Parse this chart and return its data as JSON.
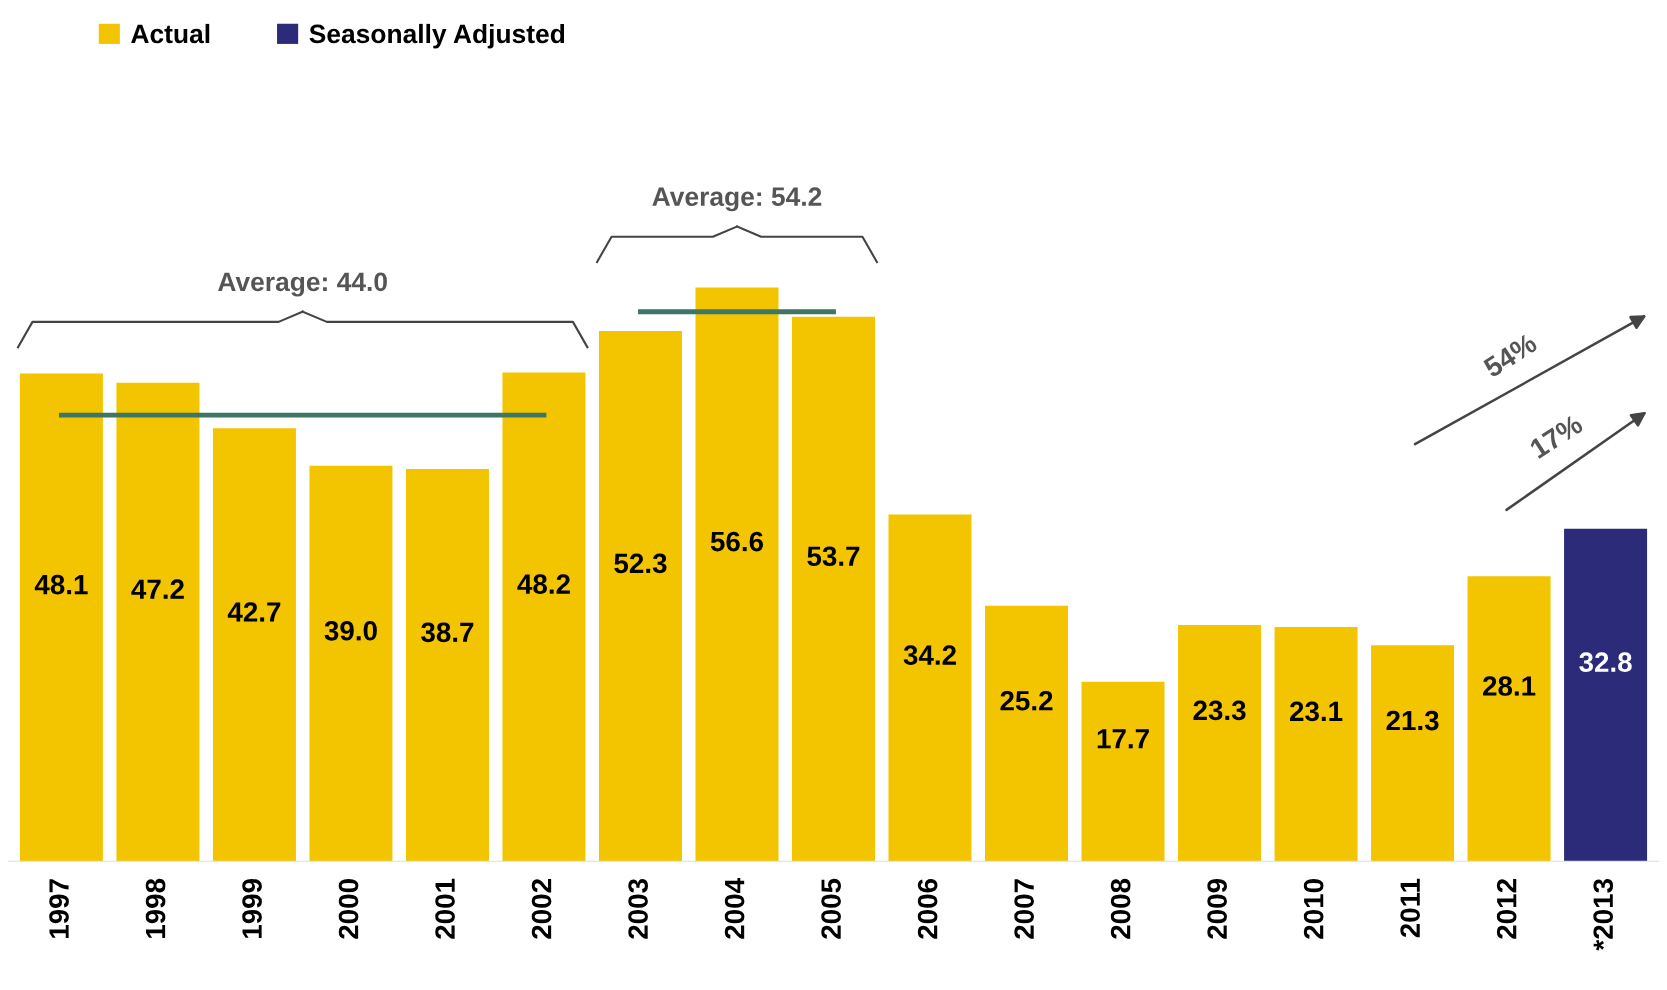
{
  "chart_data": {
    "type": "bar",
    "categories": [
      "1997",
      "1998",
      "1999",
      "2000",
      "2001",
      "2002",
      "2003",
      "2004",
      "2005",
      "2006",
      "2007",
      "2008",
      "2009",
      "2010",
      "2011",
      "2012",
      "*2013"
    ],
    "series": [
      {
        "name": "Actual",
        "color": "#f2c500",
        "values": [
          48.1,
          47.2,
          42.7,
          39.0,
          38.7,
          48.2,
          52.3,
          56.6,
          53.7,
          34.2,
          25.2,
          17.7,
          23.3,
          23.1,
          21.3,
          28.1,
          null
        ],
        "value_labels": [
          "48.1",
          "47.2",
          "42.7",
          "39.0",
          "38.7",
          "48.2",
          "52.3",
          "56.6",
          "53.7",
          "34.2",
          "25.2",
          "17.7",
          "23.3",
          "23.1",
          "21.3",
          "28.1",
          null
        ]
      },
      {
        "name": "Seasonally Adjusted",
        "color": "#2b2b7a",
        "values": [
          null,
          null,
          null,
          null,
          null,
          null,
          null,
          null,
          null,
          null,
          null,
          null,
          null,
          null,
          null,
          null,
          32.8
        ],
        "value_labels": [
          null,
          null,
          null,
          null,
          null,
          null,
          null,
          null,
          null,
          null,
          null,
          null,
          null,
          null,
          null,
          null,
          "32.8"
        ]
      },
      {
        "type": "step",
        "color": "#3d7567",
        "values": [
          44.0,
          44.0,
          44.0,
          44.0,
          44.0,
          44.0,
          null,
          null,
          null,
          null,
          null,
          null,
          null,
          null,
          null,
          null,
          null
        ]
      },
      {
        "type": "step",
        "color": "#3d7567",
        "values": [
          null,
          null,
          null,
          null,
          null,
          null,
          54.2,
          54.2,
          54.2,
          null,
          null,
          null,
          null,
          null,
          null,
          null,
          null
        ]
      }
    ],
    "annotations": [
      "Average: 44.0",
      "Average: 54.2",
      "54%",
      "17%"
    ],
    "legend": "top left",
    "grid": false
  }
}
